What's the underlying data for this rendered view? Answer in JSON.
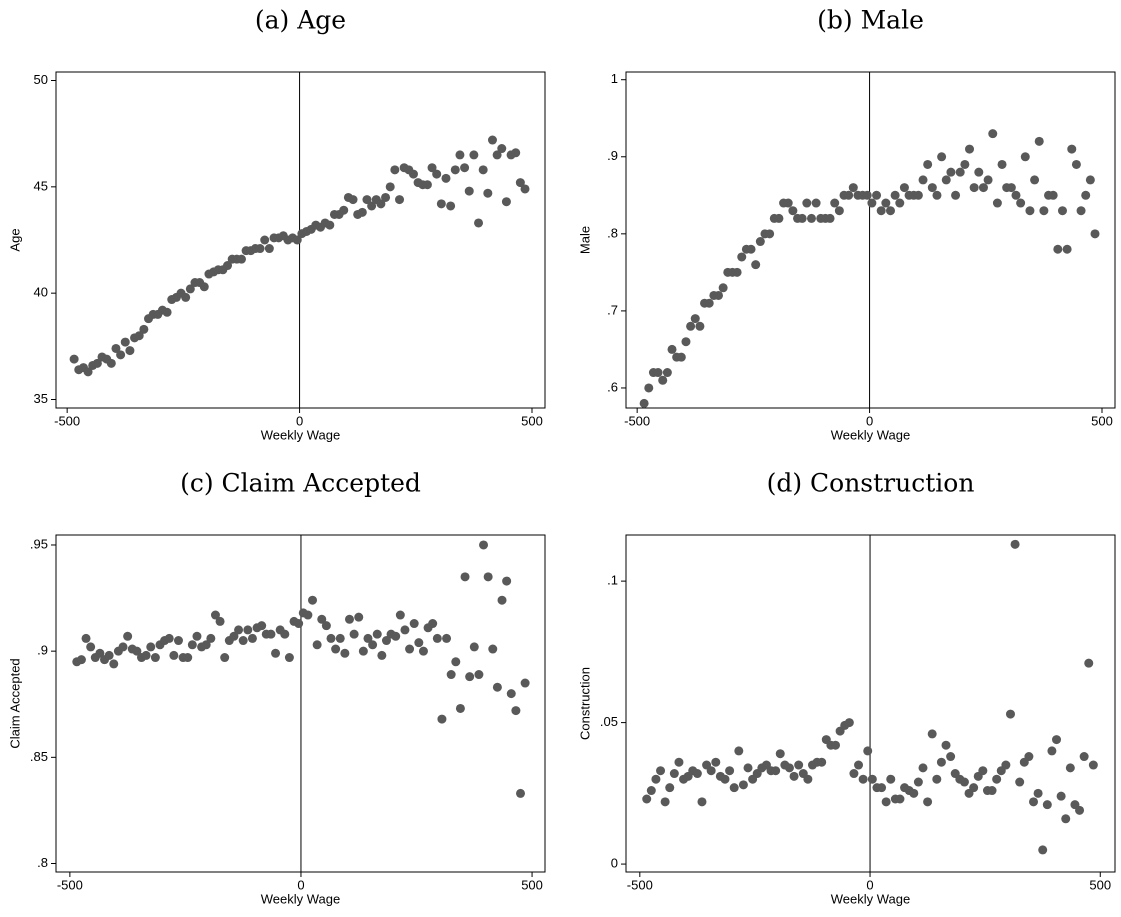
{
  "chart_data": [
    {
      "type": "scatter",
      "title": "(a) Age",
      "xlabel": "Weekly Wage",
      "ylabel": "Age",
      "vline": 0,
      "xlim": [
        -524,
        528
      ],
      "ylim": [
        34.6,
        50.4
      ],
      "xticks": [
        -500,
        0,
        500
      ],
      "yticks": [
        35,
        40,
        45,
        50
      ],
      "color": "#595959",
      "x": [
        -485,
        -475,
        -465,
        -455,
        -445,
        -435,
        -425,
        -415,
        -405,
        -395,
        -385,
        -375,
        -365,
        -355,
        -345,
        -335,
        -325,
        -315,
        -305,
        -295,
        -285,
        -275,
        -265,
        -255,
        -245,
        -235,
        -225,
        -215,
        -205,
        -195,
        -185,
        -175,
        -165,
        -155,
        -145,
        -135,
        -125,
        -115,
        -105,
        -95,
        -85,
        -75,
        -65,
        -55,
        -45,
        -35,
        -25,
        -15,
        -5,
        5,
        15,
        25,
        35,
        45,
        55,
        65,
        75,
        85,
        95,
        105,
        115,
        125,
        135,
        145,
        155,
        165,
        175,
        185,
        195,
        205,
        215,
        225,
        235,
        245,
        255,
        265,
        275,
        285,
        295,
        305,
        315,
        325,
        335,
        345,
        355,
        365,
        375,
        385,
        395,
        405,
        415,
        425,
        435,
        445,
        455,
        465,
        475,
        485
      ],
      "values": [
        36.9,
        36.4,
        36.5,
        36.3,
        36.6,
        36.7,
        37.0,
        36.9,
        36.7,
        37.4,
        37.1,
        37.7,
        37.3,
        37.9,
        38.0,
        38.3,
        38.8,
        39.0,
        39.0,
        39.2,
        39.1,
        39.7,
        39.8,
        40.0,
        39.8,
        40.2,
        40.5,
        40.5,
        40.3,
        40.9,
        41.0,
        41.1,
        41.1,
        41.3,
        41.6,
        41.6,
        41.6,
        42.0,
        42.0,
        42.1,
        42.1,
        42.5,
        42.1,
        42.6,
        42.6,
        42.7,
        42.5,
        42.6,
        42.5,
        42.8,
        42.9,
        43.0,
        43.2,
        43.1,
        43.3,
        43.2,
        43.7,
        43.7,
        43.9,
        44.5,
        44.4,
        43.7,
        43.8,
        44.4,
        44.1,
        44.4,
        44.2,
        44.5,
        45.0,
        45.8,
        44.4,
        45.9,
        45.8,
        45.6,
        45.2,
        45.1,
        45.1,
        45.9,
        45.6,
        44.2,
        45.4,
        44.1,
        45.8,
        46.5,
        45.9,
        44.8,
        46.5,
        43.3,
        45.8,
        44.7,
        47.2,
        46.5,
        46.8,
        44.3,
        46.5,
        46.6,
        45.2,
        44.9
      ]
    },
    {
      "type": "scatter",
      "title": "(b) Male",
      "xlabel": "Weekly Wage",
      "ylabel": "Male",
      "vline": 0,
      "xlim": [
        -524,
        528
      ],
      "ylim": [
        0.574,
        1.01
      ],
      "xticks": [
        -500,
        0,
        500
      ],
      "yticks": [
        {
          "value": 0.6,
          "label": ".6"
        },
        {
          "value": 0.7,
          "label": ".7"
        },
        {
          "value": 0.8,
          "label": ".8"
        },
        {
          "value": 0.9,
          "label": ".9"
        },
        1
      ],
      "color": "#595959",
      "x": [
        -485,
        -475,
        -465,
        -455,
        -445,
        -435,
        -425,
        -415,
        -405,
        -395,
        -385,
        -375,
        -365,
        -355,
        -345,
        -335,
        -325,
        -315,
        -305,
        -295,
        -285,
        -275,
        -265,
        -255,
        -245,
        -235,
        -225,
        -215,
        -205,
        -195,
        -185,
        -175,
        -165,
        -155,
        -145,
        -135,
        -125,
        -115,
        -105,
        -95,
        -85,
        -75,
        -65,
        -55,
        -45,
        -35,
        -25,
        -15,
        -5,
        5,
        15,
        25,
        35,
        45,
        55,
        65,
        75,
        85,
        95,
        105,
        115,
        125,
        135,
        145,
        155,
        165,
        175,
        185,
        195,
        205,
        215,
        225,
        235,
        245,
        255,
        265,
        275,
        285,
        295,
        305,
        315,
        325,
        335,
        345,
        355,
        365,
        375,
        385,
        395,
        405,
        415,
        425,
        435,
        445,
        455,
        465,
        475,
        485
      ],
      "values": [
        0.58,
        0.6,
        0.62,
        0.62,
        0.61,
        0.62,
        0.65,
        0.64,
        0.64,
        0.66,
        0.68,
        0.69,
        0.68,
        0.71,
        0.71,
        0.72,
        0.72,
        0.73,
        0.75,
        0.75,
        0.75,
        0.77,
        0.78,
        0.78,
        0.76,
        0.79,
        0.8,
        0.8,
        0.82,
        0.82,
        0.84,
        0.84,
        0.83,
        0.82,
        0.82,
        0.84,
        0.82,
        0.84,
        0.82,
        0.82,
        0.82,
        0.84,
        0.83,
        0.85,
        0.85,
        0.86,
        0.85,
        0.85,
        0.85,
        0.84,
        0.85,
        0.83,
        0.84,
        0.83,
        0.85,
        0.84,
        0.86,
        0.85,
        0.85,
        0.85,
        0.87,
        0.89,
        0.86,
        0.85,
        0.9,
        0.87,
        0.88,
        0.85,
        0.88,
        0.89,
        0.91,
        0.86,
        0.88,
        0.86,
        0.87,
        0.93,
        0.84,
        0.89,
        0.86,
        0.86,
        0.85,
        0.84,
        0.9,
        0.83,
        0.87,
        0.92,
        0.83,
        0.85,
        0.85,
        0.78,
        0.83,
        0.78,
        0.91,
        0.89,
        0.83,
        0.85,
        0.87,
        0.8
      ]
    },
    {
      "type": "scatter",
      "title": "(c) Claim Accepted",
      "xlabel": "Weekly Wage",
      "ylabel": "Claim Accepted",
      "vline": 0,
      "xlim": [
        -530,
        528
      ],
      "ylim": [
        0.796,
        0.9547
      ],
      "xticks": [
        -500,
        0,
        500
      ],
      "yticks": [
        {
          "value": 0.8,
          "label": ".8"
        },
        {
          "value": 0.85,
          "label": ".85"
        },
        {
          "value": 0.9,
          "label": ".9"
        },
        {
          "value": 0.95,
          "label": ".95"
        }
      ],
      "color": "#595959",
      "x": [
        -485,
        -475,
        -465,
        -455,
        -445,
        -435,
        -425,
        -415,
        -405,
        -395,
        -385,
        -375,
        -365,
        -355,
        -345,
        -335,
        -325,
        -315,
        -305,
        -295,
        -285,
        -275,
        -265,
        -255,
        -245,
        -235,
        -225,
        -215,
        -205,
        -195,
        -185,
        -175,
        -165,
        -155,
        -145,
        -135,
        -125,
        -115,
        -105,
        -95,
        -85,
        -75,
        -65,
        -55,
        -45,
        -35,
        -25,
        -15,
        -5,
        5,
        15,
        25,
        35,
        45,
        55,
        65,
        75,
        85,
        95,
        105,
        115,
        125,
        135,
        145,
        155,
        165,
        175,
        185,
        195,
        205,
        215,
        225,
        235,
        245,
        255,
        265,
        275,
        285,
        295,
        305,
        315,
        325,
        335,
        345,
        355,
        365,
        375,
        385,
        395,
        405,
        415,
        425,
        435,
        445,
        455,
        465,
        475,
        485
      ],
      "values": [
        0.895,
        0.896,
        0.906,
        0.902,
        0.897,
        0.899,
        0.896,
        0.898,
        0.894,
        0.9,
        0.902,
        0.907,
        0.901,
        0.9,
        0.897,
        0.898,
        0.902,
        0.897,
        0.903,
        0.905,
        0.906,
        0.898,
        0.905,
        0.897,
        0.897,
        0.903,
        0.907,
        0.902,
        0.903,
        0.906,
        0.917,
        0.914,
        0.897,
        0.905,
        0.907,
        0.91,
        0.905,
        0.91,
        0.906,
        0.911,
        0.912,
        0.908,
        0.908,
        0.899,
        0.91,
        0.908,
        0.897,
        0.914,
        0.913,
        0.918,
        0.917,
        0.924,
        0.903,
        0.915,
        0.912,
        0.906,
        0.901,
        0.906,
        0.899,
        0.915,
        0.908,
        0.916,
        0.9,
        0.906,
        0.903,
        0.908,
        0.898,
        0.905,
        0.908,
        0.907,
        0.917,
        0.91,
        0.901,
        0.913,
        0.904,
        0.9,
        0.911,
        0.913,
        0.906,
        0.868,
        0.906,
        0.889,
        0.895,
        0.873,
        0.935,
        0.888,
        0.902,
        0.889,
        0.95,
        0.935,
        0.901,
        0.883,
        0.924,
        0.933,
        0.88,
        0.872,
        0.833,
        0.885
      ]
    },
    {
      "type": "scatter",
      "title": "(d) Construction",
      "xlabel": "Weekly Wage",
      "ylabel": "Construction",
      "vline": 0,
      "xlim": [
        -530,
        532
      ],
      "ylim": [
        -0.0028,
        0.1163
      ],
      "xticks": [
        -500,
        0,
        500
      ],
      "yticks": [
        0,
        {
          "value": 0.05,
          "label": ".05"
        },
        {
          "value": 0.1,
          "label": ".1"
        }
      ],
      "color": "#595959",
      "x": [
        -485,
        -475,
        -465,
        -455,
        -445,
        -435,
        -425,
        -415,
        -405,
        -395,
        -385,
        -375,
        -365,
        -355,
        -345,
        -335,
        -325,
        -315,
        -305,
        -295,
        -285,
        -275,
        -265,
        -255,
        -245,
        -235,
        -225,
        -215,
        -205,
        -195,
        -185,
        -175,
        -165,
        -155,
        -145,
        -135,
        -125,
        -115,
        -105,
        -95,
        -85,
        -75,
        -65,
        -55,
        -45,
        -35,
        -25,
        -15,
        -5,
        5,
        15,
        25,
        35,
        45,
        55,
        65,
        75,
        85,
        95,
        105,
        115,
        125,
        135,
        145,
        155,
        165,
        175,
        185,
        195,
        205,
        215,
        225,
        235,
        245,
        255,
        265,
        275,
        285,
        295,
        305,
        315,
        325,
        335,
        345,
        355,
        365,
        375,
        385,
        395,
        405,
        415,
        425,
        435,
        445,
        455,
        465,
        475,
        485
      ],
      "values": [
        0.023,
        0.026,
        0.03,
        0.033,
        0.022,
        0.027,
        0.032,
        0.036,
        0.03,
        0.031,
        0.033,
        0.032,
        0.022,
        0.035,
        0.033,
        0.036,
        0.031,
        0.03,
        0.033,
        0.027,
        0.04,
        0.028,
        0.034,
        0.03,
        0.032,
        0.034,
        0.035,
        0.033,
        0.033,
        0.039,
        0.035,
        0.034,
        0.031,
        0.035,
        0.032,
        0.03,
        0.035,
        0.036,
        0.036,
        0.044,
        0.042,
        0.042,
        0.047,
        0.049,
        0.05,
        0.032,
        0.035,
        0.03,
        0.04,
        0.03,
        0.027,
        0.027,
        0.022,
        0.03,
        0.023,
        0.023,
        0.027,
        0.026,
        0.025,
        0.029,
        0.034,
        0.022,
        0.046,
        0.03,
        0.036,
        0.042,
        0.038,
        0.032,
        0.03,
        0.029,
        0.025,
        0.027,
        0.031,
        0.033,
        0.026,
        0.026,
        0.03,
        0.033,
        0.035,
        0.053,
        0.113,
        0.029,
        0.036,
        0.038,
        0.022,
        0.025,
        0.005,
        0.021,
        0.04,
        0.044,
        0.024,
        0.016,
        0.034,
        0.021,
        0.019,
        0.038,
        0.071,
        0.035
      ]
    }
  ]
}
